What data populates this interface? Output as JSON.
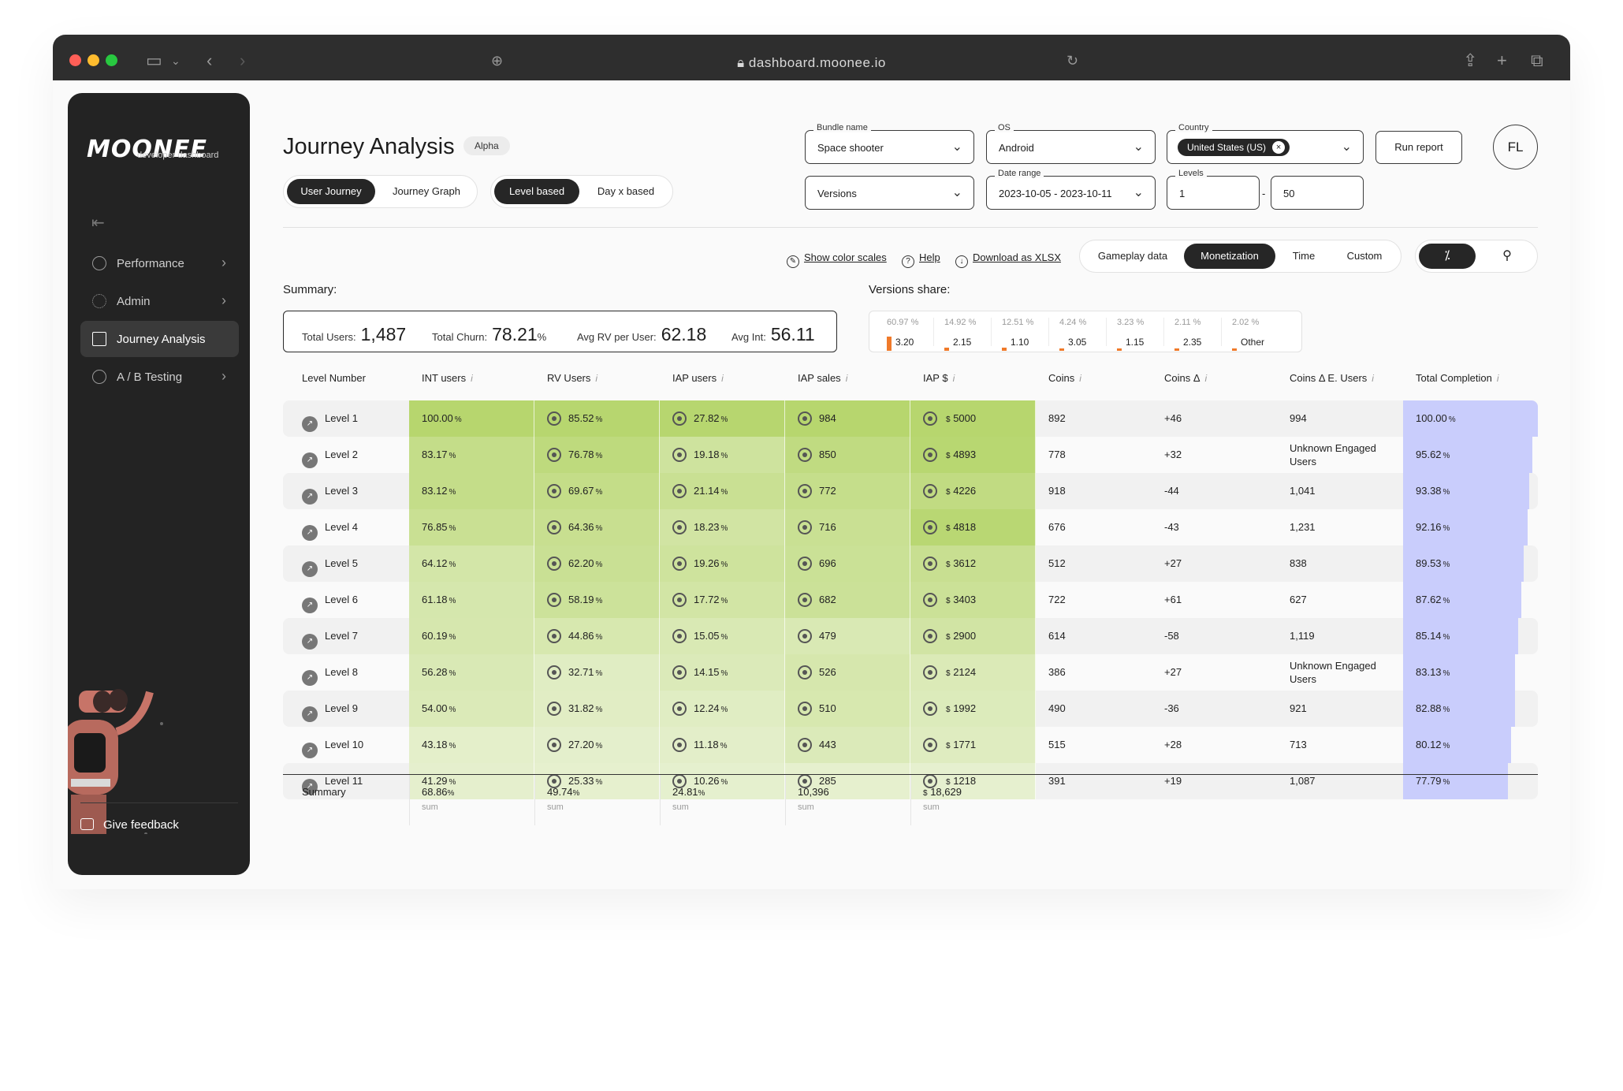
{
  "browser": {
    "url": "dashboard.moonee.io",
    "icons": [
      "sidebar-icon",
      "chevron-down-icon",
      "back-icon",
      "forward-icon",
      "shield-icon",
      "lock-icon",
      "reload-icon",
      "share-icon",
      "new-tab-icon",
      "tabs-icon"
    ]
  },
  "sidebar": {
    "logo": "MOONEE",
    "logo_sub": "developer dashboard",
    "items": [
      {
        "label": "Performance",
        "has_chevron": true
      },
      {
        "label": "Admin",
        "has_chevron": true
      },
      {
        "label": "Journey Analysis",
        "active": true
      },
      {
        "label": "A / B Testing",
        "has_chevron": true
      }
    ],
    "feedback": "Give feedback"
  },
  "header": {
    "title": "Journey Analysis",
    "badge": "Alpha",
    "view_tabs": [
      "User Journey",
      "Journey Graph"
    ],
    "mode_tabs": [
      "Level based",
      "Day x based"
    ],
    "filters": {
      "bundle_label": "Bundle name",
      "bundle_value": "Space shooter",
      "os_label": "OS",
      "os_value": "Android",
      "country_label": "Country",
      "country_value": "United States (US)",
      "versions_value": "Versions",
      "date_label": "Date range",
      "date_value": "2023-10-05 - 2023-10-11",
      "levels_label": "Levels",
      "levels_from": "1",
      "levels_sep": "-",
      "levels_to": "50"
    },
    "run_label": "Run report",
    "avatar": "FL"
  },
  "toolbar": {
    "links": [
      "Show color scales",
      "Help",
      "Download as XLSX"
    ],
    "categories": [
      "Gameplay data",
      "Monetization",
      "Time",
      "Custom"
    ],
    "active_category": "Monetization",
    "toggle_icons": [
      "percent-icon",
      "user-icon"
    ]
  },
  "summary": {
    "label": "Summary:",
    "total_users_label": "Total Users:",
    "total_users": "1,487",
    "total_churn_label": "Total Churn:",
    "total_churn": "78.21",
    "churn_unit": "%",
    "avg_rv_label": "Avg RV per User:",
    "avg_rv": "62.18",
    "avg_int_label": "Avg Int:",
    "avg_int": "56.11"
  },
  "versions_share": {
    "label": "Versions share:",
    "items": [
      {
        "pct": "60.97 %",
        "version": "3.20",
        "share": 60.97
      },
      {
        "pct": "14.92 %",
        "version": "2.15",
        "share": 14.92
      },
      {
        "pct": "12.51 %",
        "version": "1.10",
        "share": 12.51
      },
      {
        "pct": "4.24 %",
        "version": "3.05",
        "share": 4.24
      },
      {
        "pct": "3.23 %",
        "version": "1.15",
        "share": 3.23
      },
      {
        "pct": "2.11 %",
        "version": "2.35",
        "share": 2.11
      },
      {
        "pct": "2.02 %",
        "version": "Other",
        "share": 2.02
      }
    ]
  },
  "table": {
    "headers": [
      "Level Number",
      "INT users",
      "RV Users",
      "IAP users",
      "IAP sales",
      "IAP $",
      "Coins",
      "Coins Δ",
      "Coins Δ E. Users",
      "Total Completion"
    ],
    "info_mark": "i",
    "pct": "%",
    "currency": "$",
    "rows": [
      {
        "level": "Level 1",
        "int": "100.00",
        "rv": "85.52",
        "iap_users": "27.82",
        "iap_sales": "984",
        "iap_usd": "5000",
        "coins": "892",
        "delta": "+46",
        "eu": "994",
        "tc": "100.00",
        "tc_v": 100.0
      },
      {
        "level": "Level 2",
        "int": "83.17",
        "rv": "76.78",
        "iap_users": "19.18",
        "iap_sales": "850",
        "iap_usd": "4893",
        "coins": "778",
        "delta": "+32",
        "eu": "Unknown Engaged Users",
        "tc": "95.62",
        "tc_v": 95.62
      },
      {
        "level": "Level 3",
        "int": "83.12",
        "rv": "69.67",
        "iap_users": "21.14",
        "iap_sales": "772",
        "iap_usd": "4226",
        "coins": "918",
        "delta": "-44",
        "eu": "1,041",
        "tc": "93.38",
        "tc_v": 93.38
      },
      {
        "level": "Level 4",
        "int": "76.85",
        "rv": "64.36",
        "iap_users": "18.23",
        "iap_sales": "716",
        "iap_usd": "4818",
        "coins": "676",
        "delta": "-43",
        "eu": "1,231",
        "tc": "92.16",
        "tc_v": 92.16
      },
      {
        "level": "Level 5",
        "int": "64.12",
        "rv": "62.20",
        "iap_users": "19.26",
        "iap_sales": "696",
        "iap_usd": "3612",
        "coins": "512",
        "delta": "+27",
        "eu": "838",
        "tc": "89.53",
        "tc_v": 89.53
      },
      {
        "level": "Level 6",
        "int": "61.18",
        "rv": "58.19",
        "iap_users": "17.72",
        "iap_sales": "682",
        "iap_usd": "3403",
        "coins": "722",
        "delta": "+61",
        "eu": "627",
        "tc": "87.62",
        "tc_v": 87.62
      },
      {
        "level": "Level 7",
        "int": "60.19",
        "rv": "44.86",
        "iap_users": "15.05",
        "iap_sales": "479",
        "iap_usd": "2900",
        "coins": "614",
        "delta": "-58",
        "eu": "1,119",
        "tc": "85.14",
        "tc_v": 85.14
      },
      {
        "level": "Level 8",
        "int": "56.28",
        "rv": "32.71",
        "iap_users": "14.15",
        "iap_sales": "526",
        "iap_usd": "2124",
        "coins": "386",
        "delta": "+27",
        "eu": "Unknown Engaged Users",
        "tc": "83.13",
        "tc_v": 83.13
      },
      {
        "level": "Level 9",
        "int": "54.00",
        "rv": "31.82",
        "iap_users": "12.24",
        "iap_sales": "510",
        "iap_usd": "1992",
        "coins": "490",
        "delta": "-36",
        "eu": "921",
        "tc": "82.88",
        "tc_v": 82.88
      },
      {
        "level": "Level 10",
        "int": "43.18",
        "rv": "27.20",
        "iap_users": "11.18",
        "iap_sales": "443",
        "iap_usd": "1771",
        "coins": "515",
        "delta": "+28",
        "eu": "713",
        "tc": "80.12",
        "tc_v": 80.12
      },
      {
        "level": "Level 11",
        "int": "41.29",
        "rv": "25.33",
        "iap_users": "10.26",
        "iap_sales": "285",
        "iap_usd": "1218",
        "coins": "391",
        "delta": "+19",
        "eu": "1,087",
        "tc": "77.79",
        "tc_v": 77.79
      }
    ],
    "summary": {
      "label": "Summary",
      "int": "68.86",
      "rv": "49.74",
      "iap_users": "24.81",
      "iap_sales": "10,396",
      "iap_usd": "18,629",
      "sub": "sum"
    }
  },
  "colors": {
    "accent_dark": "#262626",
    "green_strong": "#b7d66e",
    "green_light": "#e6f0cf",
    "completion": "#c9cdfc",
    "version_bar": "#f07a2a"
  }
}
